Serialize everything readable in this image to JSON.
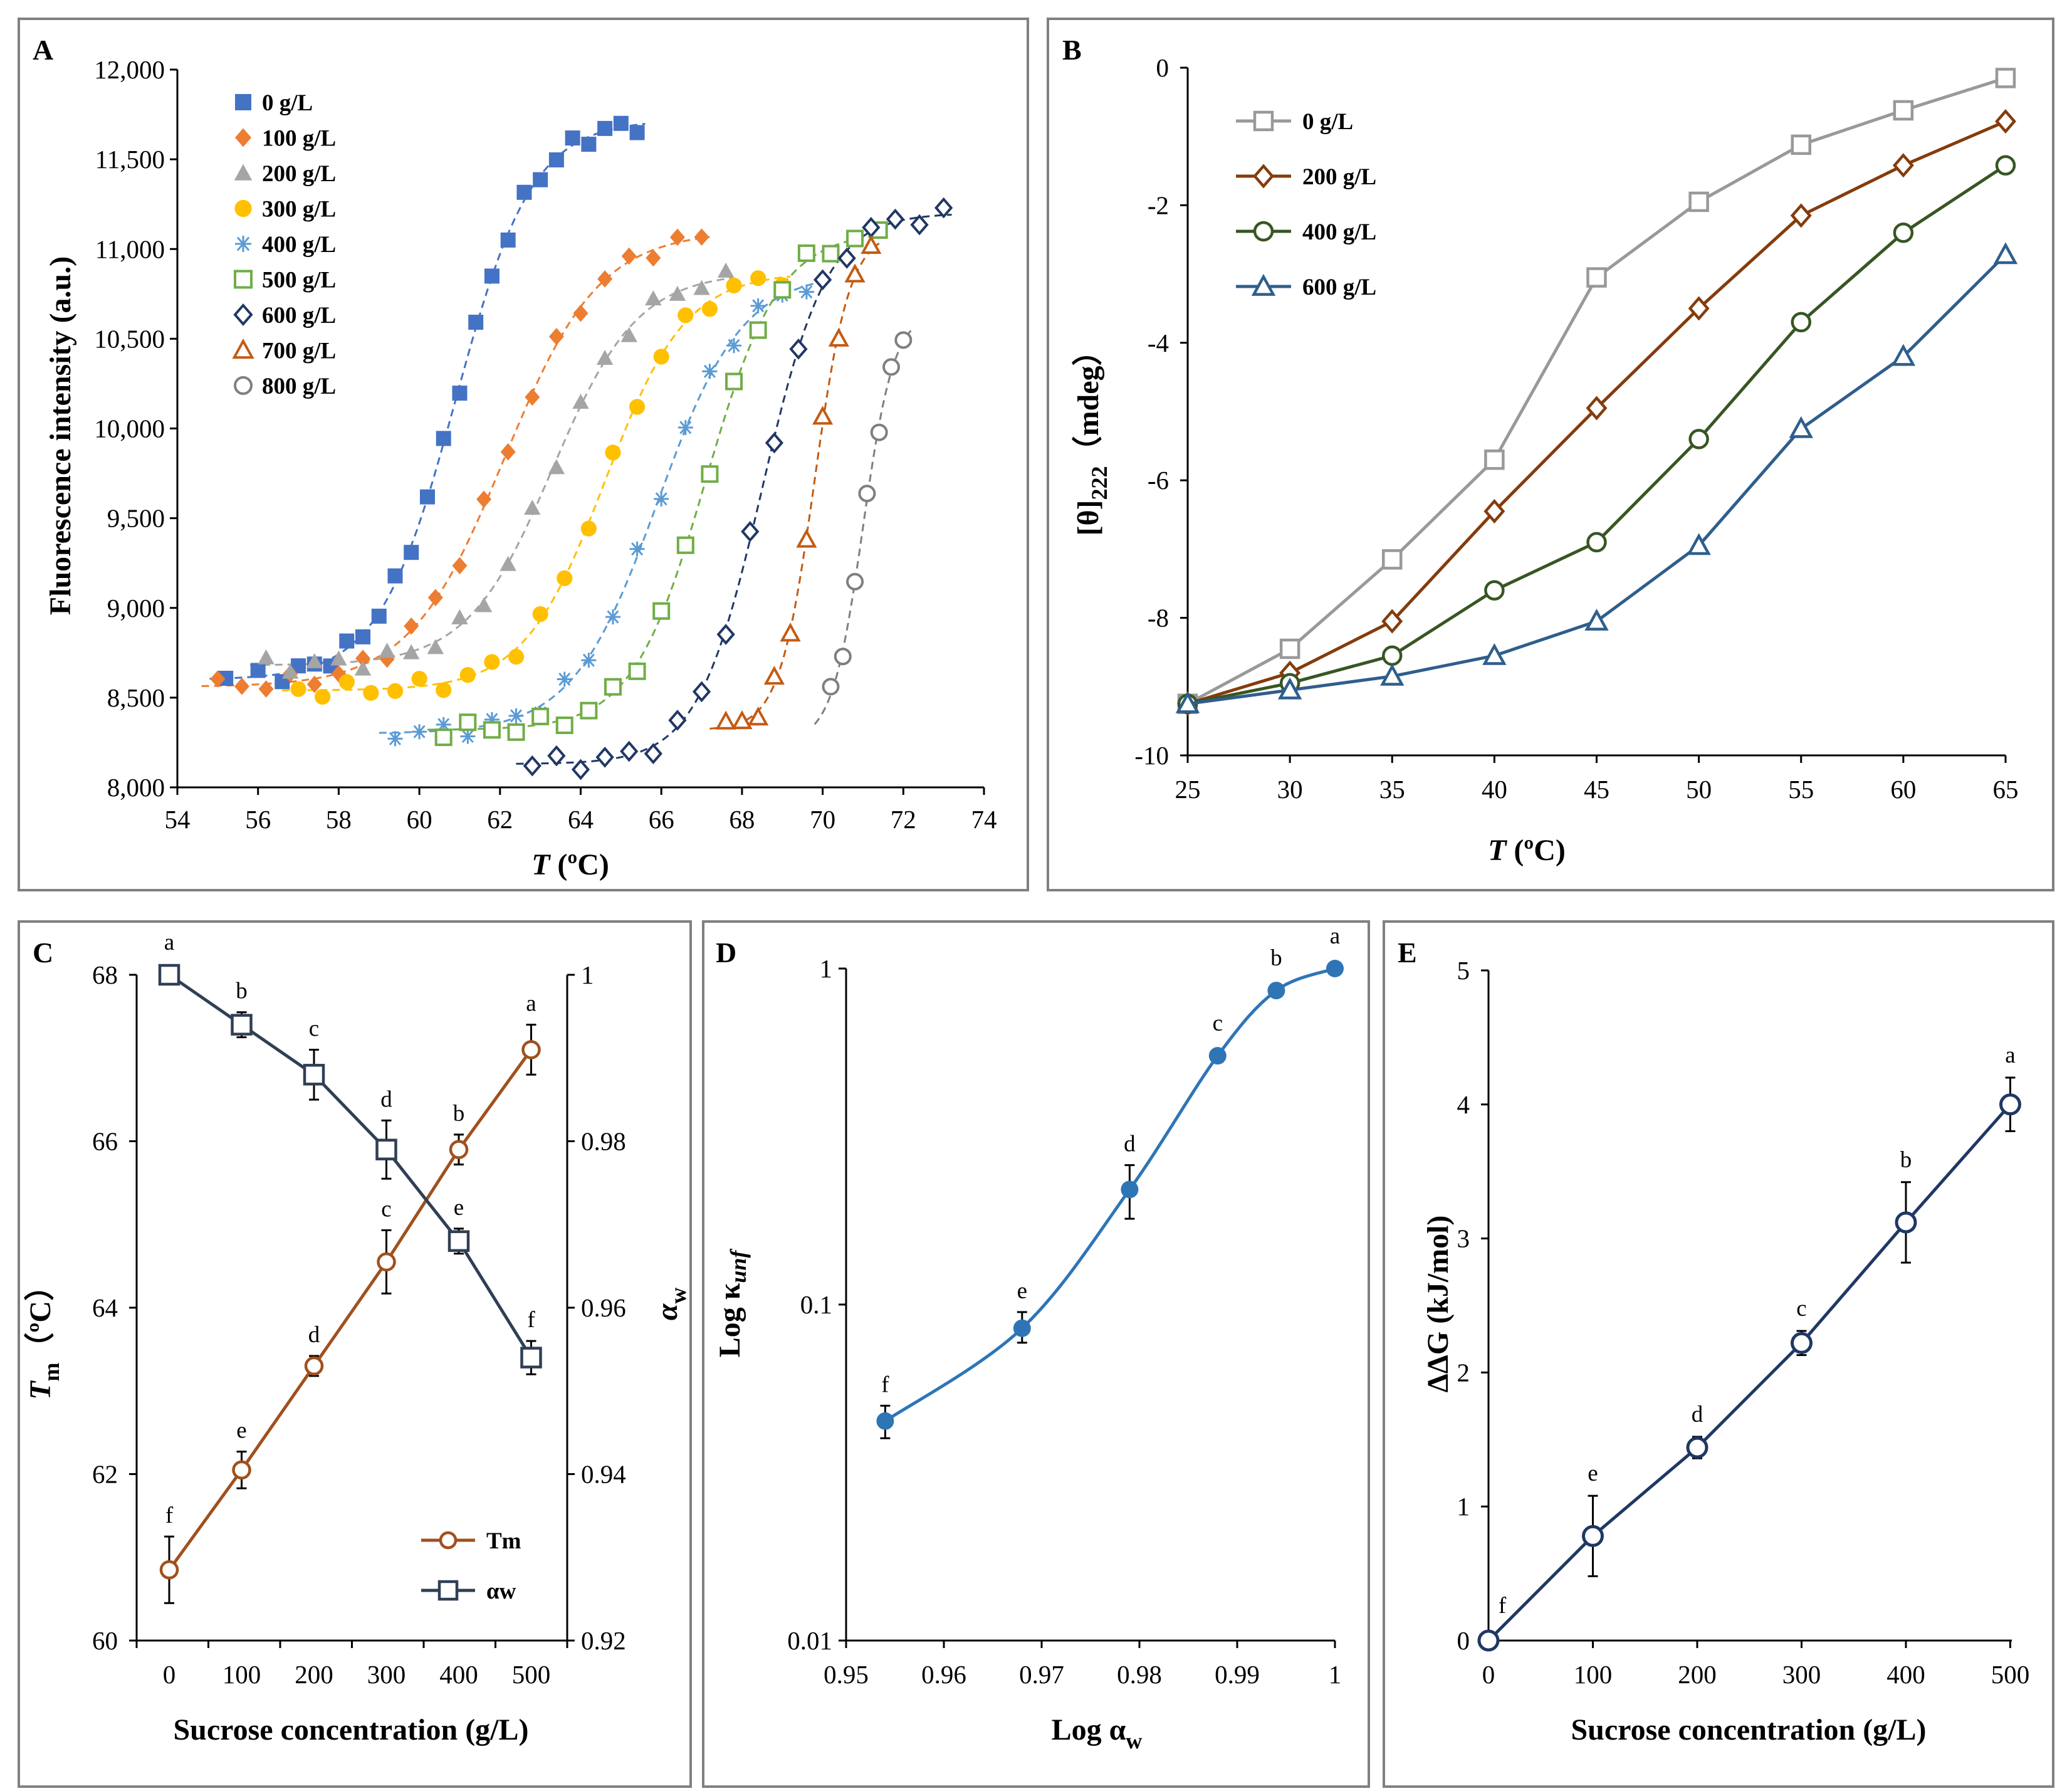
{
  "chart_data": [
    {
      "panel": "A",
      "type": "scatter",
      "xlabel": "T (ºC)",
      "ylabel": "Fluorescence intensity (a.u.)",
      "xlim": [
        54,
        74
      ],
      "ylim": [
        8000,
        12000
      ],
      "x_ticks": [
        "54",
        "56",
        "58",
        "60",
        "62",
        "64",
        "66",
        "68",
        "70",
        "72",
        "74"
      ],
      "y_ticks": [
        "8,000",
        "8,500",
        "9,000",
        "9,500",
        "10,000",
        "10,500",
        "11,000",
        "11,500",
        "12,000"
      ],
      "legend_position": "top-left",
      "series": [
        {
          "name": "0 g/L",
          "marker": "filled-square",
          "color": "#4472C4",
          "Tm": 60.9,
          "lo": 8600,
          "hi": 11720,
          "k": 1.05,
          "x": [
            55.2,
            56.0,
            56.6,
            57.0,
            57.4,
            57.8,
            58.2,
            58.6,
            59.0,
            59.4,
            59.8,
            60.2,
            60.6,
            61.0,
            61.4,
            61.8,
            62.2,
            62.6,
            63.0,
            63.4,
            63.8,
            64.2,
            64.6,
            65.0,
            65.4
          ]
        },
        {
          "name": "100 g/L",
          "marker": "filled-diamond",
          "color": "#ED7D31",
          "Tm": 62.1,
          "lo": 8560,
          "hi": 11100,
          "k": 0.85,
          "x": [
            55.0,
            55.6,
            56.2,
            56.8,
            57.4,
            58.0,
            58.6,
            59.2,
            59.8,
            60.4,
            61.0,
            61.6,
            62.2,
            62.8,
            63.4,
            64.0,
            64.6,
            65.2,
            65.8,
            66.4,
            67.0
          ]
        },
        {
          "name": "200 g/L",
          "marker": "filled-triangle",
          "color": "#A5A5A5",
          "Tm": 63.3,
          "lo": 8680,
          "hi": 10870,
          "k": 0.95,
          "x": [
            56.2,
            56.8,
            57.4,
            58.0,
            58.6,
            59.2,
            59.8,
            60.4,
            61.0,
            61.6,
            62.2,
            62.8,
            63.4,
            64.0,
            64.6,
            65.2,
            65.8,
            66.4,
            67.0,
            67.6
          ]
        },
        {
          "name": "300 g/L",
          "marker": "filled-circle",
          "color": "#FFC000",
          "Tm": 64.6,
          "lo": 8540,
          "hi": 10870,
          "k": 1.0,
          "x": [
            57.0,
            57.6,
            58.2,
            58.8,
            59.4,
            60.0,
            60.6,
            61.2,
            61.8,
            62.4,
            63.0,
            63.6,
            64.2,
            64.8,
            65.4,
            66.0,
            66.6,
            67.2,
            67.8,
            68.4,
            69.0
          ]
        },
        {
          "name": "400 g/L",
          "marker": "asterisk",
          "color": "#5B9BD5",
          "Tm": 65.9,
          "lo": 8300,
          "hi": 10870,
          "k": 0.95,
          "x": [
            59.4,
            60.0,
            60.6,
            61.2,
            61.8,
            62.4,
            63.0,
            63.6,
            64.2,
            64.8,
            65.4,
            66.0,
            66.6,
            67.2,
            67.8,
            68.4,
            69.0,
            69.6
          ]
        },
        {
          "name": "500 g/L",
          "marker": "open-square",
          "color": "#70AD47",
          "Tm": 67.1,
          "lo": 8320,
          "hi": 11100,
          "k": 1.1,
          "x": [
            60.6,
            61.2,
            61.8,
            62.4,
            63.0,
            63.6,
            64.2,
            64.8,
            65.4,
            66.0,
            66.6,
            67.2,
            67.8,
            68.4,
            69.0,
            69.6,
            70.2,
            70.8,
            71.4
          ]
        },
        {
          "name": "600 g/L",
          "marker": "open-diamond",
          "color": "#203864",
          "Tm": 68.5,
          "lo": 8130,
          "hi": 11200,
          "k": 1.25,
          "x": [
            62.8,
            63.4,
            64.0,
            64.6,
            65.2,
            65.8,
            66.4,
            67.0,
            67.6,
            68.2,
            68.8,
            69.4,
            70.0,
            70.6,
            71.2,
            71.8,
            72.4,
            73.0
          ]
        },
        {
          "name": "700 g/L",
          "marker": "open-triangle",
          "color": "#C55A11",
          "Tm": 69.8,
          "lo": 8320,
          "hi": 11100,
          "k": 2.3,
          "x": [
            67.6,
            68.0,
            68.4,
            68.8,
            69.2,
            69.6,
            70.0,
            70.4,
            70.8,
            71.2
          ]
        },
        {
          "name": "800 g/L",
          "marker": "open-circle",
          "color": "#7F7F7F",
          "Tm": 71.0,
          "lo": 8250,
          "hi": 10650,
          "k": 2.6,
          "x": [
            70.2,
            70.5,
            70.8,
            71.1,
            71.4,
            71.7,
            72.0
          ]
        }
      ]
    },
    {
      "panel": "B",
      "type": "line",
      "xlabel": "T (ºC)",
      "ylabel": "[θ]222 (mdeg)",
      "ylabel_main": "[θ]",
      "ylabel_sub": "222",
      "ylabel_tail": "（mdeg）",
      "xlim": [
        25,
        65
      ],
      "ylim": [
        -10,
        0
      ],
      "x_ticks": [
        "25",
        "30",
        "35",
        "40",
        "45",
        "50",
        "55",
        "60",
        "65"
      ],
      "y_ticks": [
        "-10",
        "-8",
        "-6",
        "-4",
        "-2",
        "0"
      ],
      "legend_position": "top-left",
      "x": [
        25,
        30,
        35,
        40,
        45,
        50,
        55,
        60,
        65
      ],
      "series": [
        {
          "name": "0 g/L",
          "marker": "open-square",
          "color": "#999999",
          "values": [
            -9.25,
            -8.45,
            -7.15,
            -5.7,
            -3.05,
            -1.95,
            -1.12,
            -0.62,
            -0.15
          ]
        },
        {
          "name": "200 g/L",
          "marker": "open-diamond",
          "color": "#843C0C",
          "values": [
            -9.25,
            -8.8,
            -8.05,
            -6.45,
            -4.95,
            -3.5,
            -2.15,
            -1.42,
            -0.78
          ]
        },
        {
          "name": "400 g/L",
          "marker": "open-circle",
          "color": "#375623",
          "values": [
            -9.25,
            -8.95,
            -8.55,
            -7.6,
            -6.9,
            -5.4,
            -3.7,
            -2.4,
            -1.42
          ]
        },
        {
          "name": "600 g/L",
          "marker": "open-triangle",
          "color": "#2E5E8C",
          "values": [
            -9.25,
            -9.05,
            -8.85,
            -8.55,
            -8.05,
            -6.95,
            -5.25,
            -4.2,
            -2.72
          ]
        }
      ]
    },
    {
      "panel": "C",
      "type": "line",
      "xlabel": "Sucrose concentration (g/L)",
      "ylabel_left": "Tm (ºC)",
      "ylabel_left_main": "T",
      "ylabel_left_sub": "m",
      "ylabel_left_tail": "（ºC）",
      "ylabel_right": "αw",
      "ylabel_right_main": "α",
      "ylabel_right_sub": "w",
      "categories": [
        "0",
        "100",
        "200",
        "300",
        "400",
        "500"
      ],
      "y_left_lim": [
        60,
        68
      ],
      "y_right_lim": [
        0.92,
        1
      ],
      "y_left_ticks": [
        "60",
        "62",
        "64",
        "66",
        "68"
      ],
      "y_right_ticks": [
        "0.92",
        "0.94",
        "0.96",
        "0.98",
        "1"
      ],
      "legend_position": "bottom-right",
      "series": [
        {
          "name": "Tm",
          "axis": "left",
          "marker": "open-circle",
          "color": "#A0501E",
          "values": [
            60.85,
            62.05,
            63.3,
            64.55,
            65.9,
            67.1
          ],
          "errors": [
            0.4,
            0.22,
            0.12,
            0.38,
            0.18,
            0.3
          ],
          "letters": [
            "f",
            "e",
            "d",
            "c",
            "b",
            "a"
          ]
        },
        {
          "name": "αw",
          "axis": "right",
          "marker": "open-square",
          "color": "#2F3F55",
          "values": [
            1.0,
            0.994,
            0.988,
            0.979,
            0.968,
            0.954
          ],
          "errors": [
            0.0,
            0.0015,
            0.003,
            0.0035,
            0.0015,
            0.002
          ],
          "letters": [
            "a",
            "b",
            "c",
            "d",
            "e",
            "f"
          ]
        }
      ]
    },
    {
      "panel": "D",
      "type": "line",
      "xlabel": "Log αw",
      "xlabel_main": "Log α",
      "xlabel_sub": "w",
      "ylabel": "Log κunf",
      "ylabel_main": "Log κ",
      "ylabel_sub": "unf",
      "xlim": [
        0.95,
        1
      ],
      "y_scale": "log",
      "ylim": [
        0.01,
        1
      ],
      "x_ticks": [
        "0.95",
        "0.96",
        "0.97",
        "0.98",
        "0.99",
        "1"
      ],
      "y_ticks": [
        "0.01",
        "0.1",
        "1"
      ],
      "x": [
        0.954,
        0.968,
        0.979,
        0.988,
        0.994,
        1.0
      ],
      "values": [
        0.045,
        0.085,
        0.22,
        0.55,
        0.86,
        1.0
      ],
      "error_low": [
        0.04,
        0.077,
        0.18,
        0.55,
        0.86,
        1.0
      ],
      "error_high": [
        0.05,
        0.095,
        0.26,
        0.55,
        0.86,
        1.0
      ],
      "letters": [
        "f",
        "e",
        "d",
        "c",
        "b",
        "a"
      ],
      "color": "#2E75B6"
    },
    {
      "panel": "E",
      "type": "line",
      "xlabel": "Sucrose concentration (g/L)",
      "ylabel": "ΔΔG (kJ/mol)",
      "categories": [
        "0",
        "100",
        "200",
        "300",
        "400",
        "500"
      ],
      "ylim": [
        0,
        5
      ],
      "y_ticks": [
        "0",
        "1",
        "2",
        "3",
        "4",
        "5"
      ],
      "values": [
        0,
        0.78,
        1.44,
        2.22,
        3.12,
        4.0
      ],
      "errors": [
        0,
        0.3,
        0.08,
        0.09,
        0.3,
        0.2
      ],
      "letters": [
        "f",
        "e",
        "d",
        "c",
        "b",
        "a"
      ],
      "color": "#1F3864"
    }
  ]
}
